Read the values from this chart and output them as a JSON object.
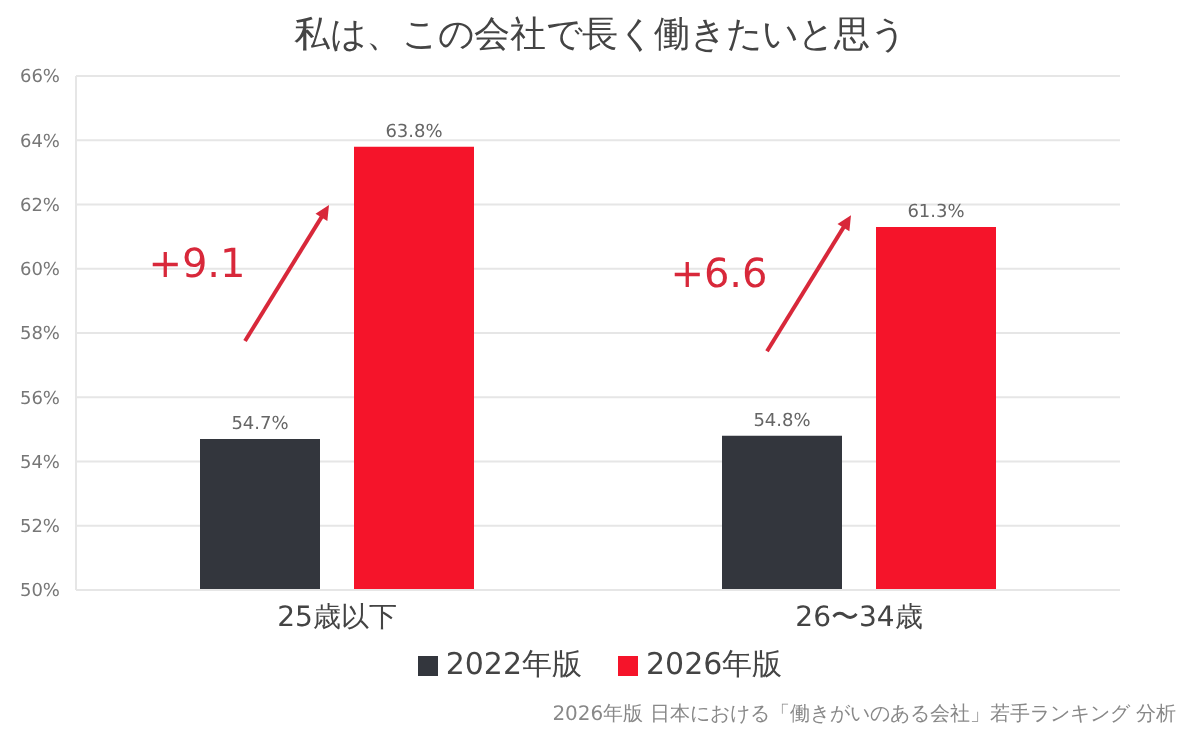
{
  "chart_data": {
    "type": "bar",
    "title": "私は、この会社で長く働きたいと思う",
    "categories": [
      "25歳以下",
      "26〜34歳"
    ],
    "series": [
      {
        "name": "2022年版",
        "color": "#33363d",
        "values": [
          54.7,
          54.8
        ]
      },
      {
        "name": "2026年版",
        "color": "#f5142a",
        "values": [
          63.8,
          61.3
        ]
      }
    ],
    "value_labels": [
      [
        "54.7%",
        "54.8%"
      ],
      [
        "63.8%",
        "61.3%"
      ]
    ],
    "ylim": [
      50,
      66
    ],
    "yticks": [
      {
        "value": 50,
        "label": "50%"
      },
      {
        "value": 52,
        "label": "52%"
      },
      {
        "value": 54,
        "label": "54%"
      },
      {
        "value": 56,
        "label": "56%"
      },
      {
        "value": 58,
        "label": "58%"
      },
      {
        "value": 60,
        "label": "60%"
      },
      {
        "value": 62,
        "label": "62%"
      },
      {
        "value": 64,
        "label": "64%"
      },
      {
        "value": 66,
        "label": "66%"
      }
    ],
    "grid": "y",
    "legend": "bottom",
    "annotations": [
      "+9.1",
      "+6.6",
      "2026年版 日本における「働きがいのある会社」若手ランキング 分析"
    ]
  }
}
